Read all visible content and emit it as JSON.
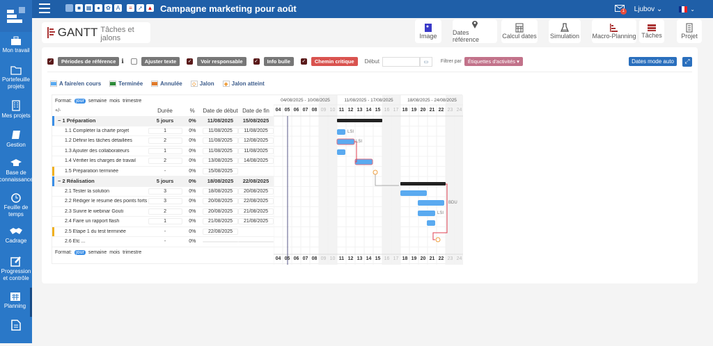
{
  "topbar": {
    "title": "Campagne marketing pour août",
    "user": "Ljubov",
    "mail_badge": "1",
    "icons": [
      "phone-icon",
      "square-icon",
      "grid-icon",
      "info-icon",
      "network-icon",
      "text-icon",
      "gantt-icon",
      "share-icon",
      "warning-icon"
    ]
  },
  "sidebar": {
    "items": [
      {
        "label": "Mon travail",
        "icon": "briefcase-icon"
      },
      {
        "label": "Portefeuille projets",
        "icon": "folder-icon"
      },
      {
        "label": "Mes projets",
        "icon": "building-icon"
      },
      {
        "label": "Gestion",
        "icon": "book-icon"
      },
      {
        "label": "Base de connaissance",
        "icon": "graduation-cap-icon"
      },
      {
        "label": "Feuille de temps",
        "icon": "clock-icon"
      },
      {
        "label": "Cadrage",
        "icon": "handshake-icon"
      },
      {
        "label": "Progression et contrôle",
        "icon": "edit-icon"
      },
      {
        "label": "Planning",
        "icon": "calendar-icon"
      },
      {
        "label": "",
        "icon": "document-icon"
      }
    ]
  },
  "header": {
    "title": "GANTT",
    "subtitle": "Tâches et jalons"
  },
  "toolbar": [
    {
      "label": "Image",
      "icon": "image-icon"
    },
    {
      "label": "Dates référence",
      "icon": "map-pin-icon"
    },
    {
      "label": "Calcul dates",
      "icon": "calculator-icon"
    },
    {
      "label": "Simulation",
      "icon": "flask-icon"
    },
    {
      "label": "Macro-Planning",
      "icon": "macro-gantt-icon"
    },
    {
      "label": "Tâches",
      "icon": "tasks-icon"
    },
    {
      "label": "Projet",
      "icon": "building-icon"
    }
  ],
  "filters": {
    "periodes": "Périodes de référence",
    "ajuster": "Ajuster texte",
    "responsable": "Voir responsable",
    "infobulle": "Info bulle",
    "chemin": "Chemin critique",
    "debut_label": "Début",
    "debut_value": "",
    "filtrer_label": "Filtrer par",
    "filtrer_value": "Étiquettes d'activités",
    "dates_mode": "Dates mode auto"
  },
  "legend": [
    {
      "label": "A faire/en cours",
      "color": "#5aaaf0"
    },
    {
      "label": "Terminée",
      "color": "#2e8b3a"
    },
    {
      "label": "Annulée",
      "color": "#e07a2a"
    },
    {
      "label": "Jalon",
      "color": "#f0a040"
    },
    {
      "label": "Jalon atteint",
      "color": "#f0a040"
    }
  ],
  "grid": {
    "format_label": "Format:",
    "formats": [
      "jour",
      "semaine",
      "mois",
      "trimestre"
    ],
    "columns": {
      "toggle": "+/-",
      "duree": "Durée",
      "pct": "%",
      "debut": "Date de début",
      "fin": "Date de fin"
    },
    "rows": [
      {
        "name": "− 1 Préparation",
        "dur": "5 jours",
        "pct": "0%",
        "start": "11/08/2025",
        "end": "15/08/2025",
        "type": "grp"
      },
      {
        "name": "1.1 Compléter la charte projet",
        "dur": "1",
        "pct": "0%",
        "start": "11/08/2025",
        "end": "11/08/2025",
        "type": "sub"
      },
      {
        "name": "1.2 Définir les tâches détaillées",
        "dur": "2",
        "pct": "0%",
        "start": "11/08/2025",
        "end": "12/08/2025",
        "type": "sub"
      },
      {
        "name": "1.3 Ajouter des collaborateurs",
        "dur": "1",
        "pct": "0%",
        "start": "11/08/2025",
        "end": "11/08/2025",
        "type": "sub"
      },
      {
        "name": "1.4 Vérifier les charges de travail",
        "dur": "2",
        "pct": "0%",
        "start": "13/08/2025",
        "end": "14/08/2025",
        "type": "sub"
      },
      {
        "name": "1.5 Préparation terminée",
        "dur": "-",
        "pct": "0%",
        "start": "15/08/2025",
        "end": "",
        "type": "ms"
      },
      {
        "name": "− 2 Réalisation",
        "dur": "5 jours",
        "pct": "0%",
        "start": "18/08/2025",
        "end": "22/08/2025",
        "type": "grp"
      },
      {
        "name": "2.1 Tester la solution",
        "dur": "3",
        "pct": "0%",
        "start": "18/08/2025",
        "end": "20/08/2025",
        "type": "sub"
      },
      {
        "name": "2.2 Rédiger le résumé des points forts",
        "dur": "3",
        "pct": "0%",
        "start": "20/08/2025",
        "end": "22/08/2025",
        "type": "sub"
      },
      {
        "name": "2.3 Suivre le webinar Gouti",
        "dur": "2",
        "pct": "0%",
        "start": "20/08/2025",
        "end": "21/08/2025",
        "type": "sub"
      },
      {
        "name": "2.4 Faire un rapport flash",
        "dur": "1",
        "pct": "0%",
        "start": "21/08/2025",
        "end": "21/08/2025",
        "type": "sub"
      },
      {
        "name": "2.5 Etape 1 du test terminée",
        "dur": "-",
        "pct": "0%",
        "start": "22/08/2025",
        "end": "",
        "type": "ms"
      },
      {
        "name": "2.6 Etc ...",
        "dur": "-",
        "pct": "0%",
        "start": "",
        "end": "",
        "type": "sub"
      }
    ]
  },
  "timeline": {
    "weeks": [
      "04/08/2025 - 10/08/2025",
      "11/08/2025 - 17/08/2025",
      "18/08/2025 - 24/08/2025"
    ],
    "days": [
      "04",
      "05",
      "06",
      "07",
      "08",
      "09",
      "10",
      "11",
      "12",
      "13",
      "14",
      "15",
      "16",
      "17",
      "18",
      "19",
      "20",
      "21",
      "22",
      "23",
      "24"
    ],
    "bar_labels": {
      "r1": "LSI",
      "r2": "LSI",
      "r8": "BDU",
      "r9": "LSI"
    }
  }
}
